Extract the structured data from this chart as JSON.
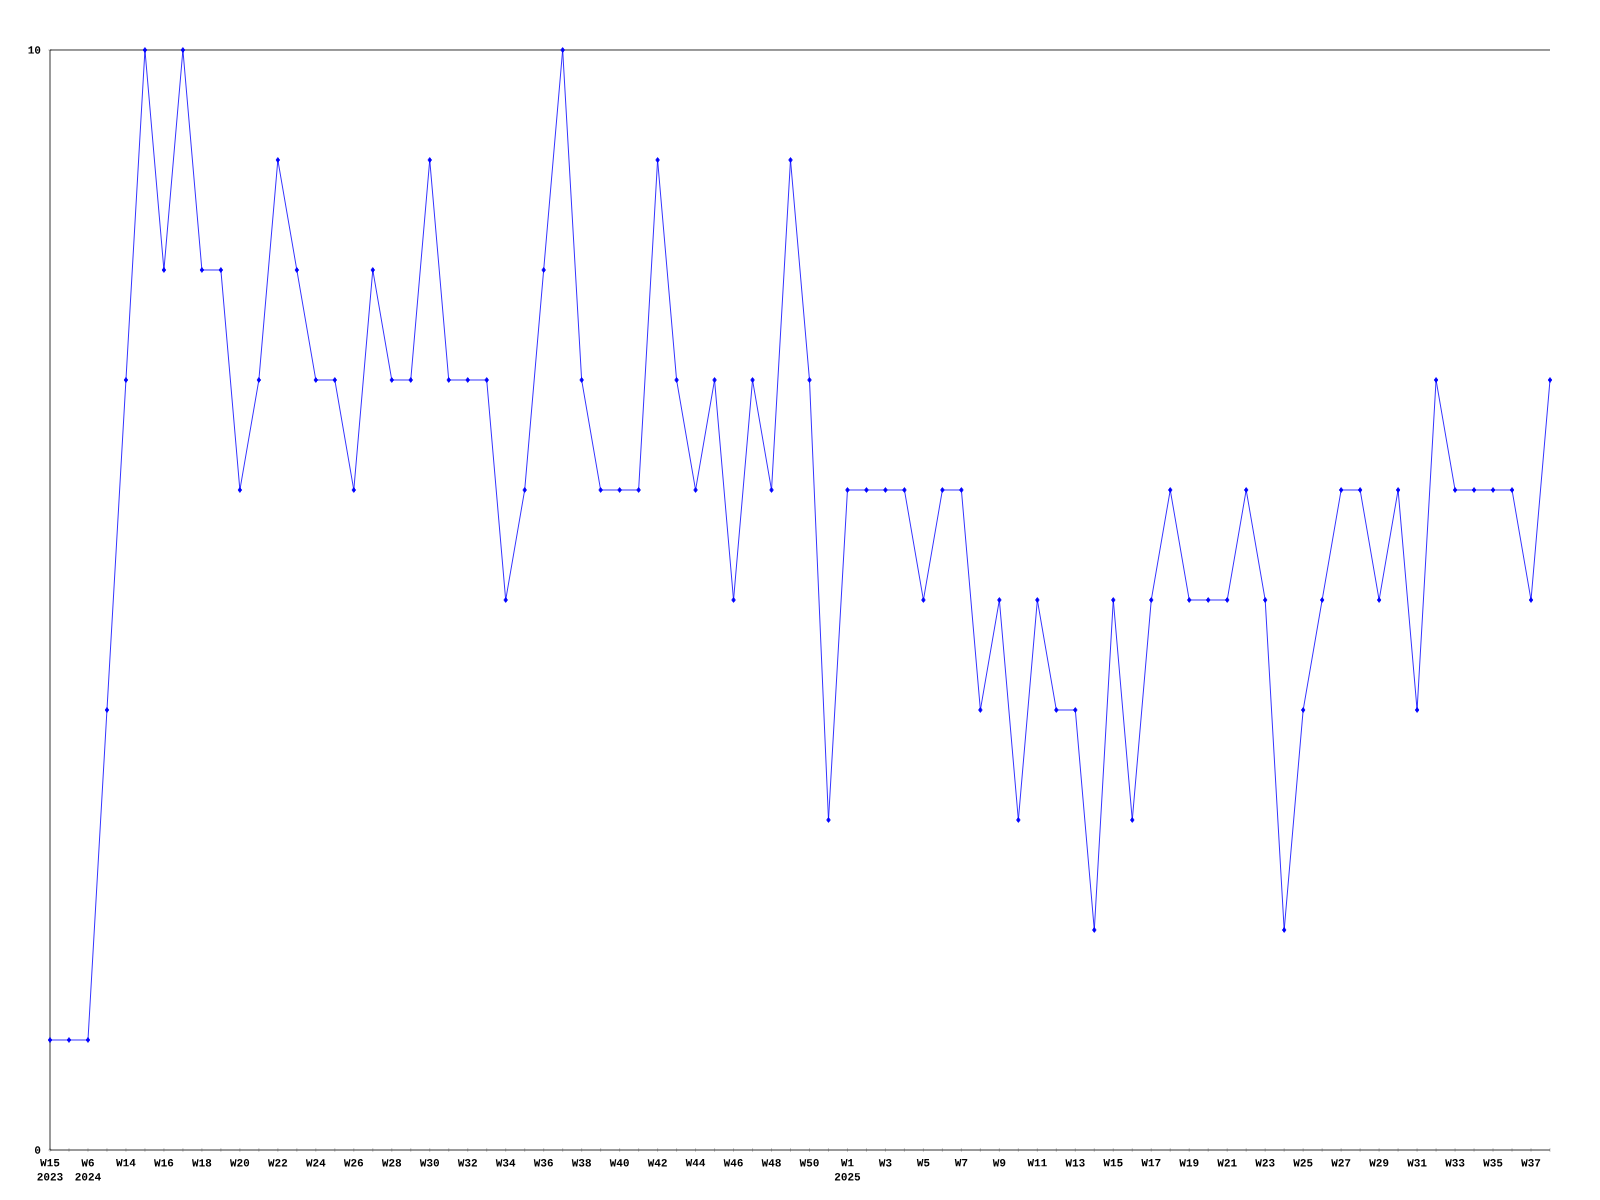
{
  "chart_data": {
    "type": "line",
    "categories": [
      "W15",
      null,
      "W6",
      null,
      "W14",
      null,
      "W16",
      null,
      "W18",
      null,
      "W20",
      null,
      "W22",
      null,
      "W24",
      null,
      "W26",
      null,
      "W28",
      null,
      "W30",
      null,
      "W32",
      null,
      "W34",
      null,
      "W36",
      null,
      "W38",
      null,
      "W40",
      null,
      "W42",
      null,
      "W44",
      null,
      "W46",
      null,
      "W48",
      null,
      "W50",
      null,
      "W1",
      null,
      "W3",
      null,
      "W5",
      null,
      "W7",
      null,
      "W9",
      null,
      "W11",
      null,
      "W13",
      null,
      "W15",
      null,
      "W17",
      null,
      "W19",
      null,
      "W21",
      null,
      "W23",
      null,
      "W25",
      null,
      "W27",
      null,
      "W29",
      null,
      "W31",
      null,
      "W33",
      null,
      "W35",
      null,
      "W37",
      null
    ],
    "values": [
      1,
      1,
      1,
      4,
      7,
      10,
      8,
      10,
      8,
      8,
      6,
      7,
      9,
      8,
      7,
      7,
      6,
      8,
      7,
      7,
      9,
      7,
      7,
      7,
      5,
      6,
      8,
      10,
      7,
      6,
      6,
      6,
      9,
      7,
      6,
      7,
      5,
      7,
      6,
      9,
      7,
      3,
      6,
      6,
      6,
      6,
      5,
      6,
      6,
      4,
      5,
      3,
      5,
      4,
      4,
      2,
      5,
      3,
      5,
      6,
      5,
      5,
      5,
      6,
      5,
      2,
      4,
      5,
      6,
      6,
      5,
      6,
      4,
      7,
      6,
      6,
      6,
      6,
      5,
      7
    ],
    "color": "#0000ff",
    "marker": "diamond",
    "ylim": [
      0,
      10
    ],
    "yticks": [
      0,
      10
    ],
    "annotations": [
      "2023",
      "2024",
      "2025"
    ]
  }
}
